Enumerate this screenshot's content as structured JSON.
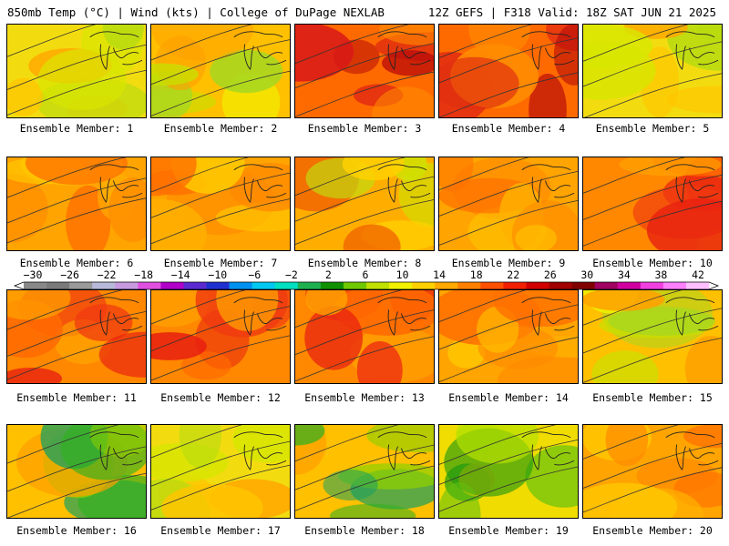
{
  "header": {
    "left": "850mb Temp (°C) | Wind (kts) | College of DuPage NEXLAB",
    "right": "12Z GEFS | F318 Valid: 18Z SAT JUN 21 2025"
  },
  "caption_prefix": "Ensemble Member: ",
  "members": [
    {
      "id": "1",
      "mood": "y"
    },
    {
      "id": "2",
      "mood": "yg"
    },
    {
      "id": "3",
      "mood": "rr"
    },
    {
      "id": "4",
      "mood": "rr"
    },
    {
      "id": "5",
      "mood": "y"
    },
    {
      "id": "6",
      "mood": "o"
    },
    {
      "id": "7",
      "mood": "o"
    },
    {
      "id": "8",
      "mood": "og"
    },
    {
      "id": "9",
      "mood": "o"
    },
    {
      "id": "10",
      "mood": "r"
    },
    {
      "id": "11",
      "mood": "r"
    },
    {
      "id": "12",
      "mood": "r"
    },
    {
      "id": "13",
      "mood": "r"
    },
    {
      "id": "14",
      "mood": "o"
    },
    {
      "id": "15",
      "mood": "yg"
    },
    {
      "id": "16",
      "mood": "gt"
    },
    {
      "id": "17",
      "mood": "y"
    },
    {
      "id": "18",
      "mood": "gt"
    },
    {
      "id": "19",
      "mood": "g"
    },
    {
      "id": "20",
      "mood": "o"
    }
  ],
  "colorbar": {
    "labels": [
      "−30",
      "−26",
      "−22",
      "−18",
      "−14",
      "−10",
      "−6",
      "−2",
      "2",
      "6",
      "10",
      "14",
      "18",
      "22",
      "26",
      "30",
      "34",
      "38",
      "42"
    ],
    "colors": [
      "#888888",
      "#7a7a7a",
      "#9a9a9a",
      "#b8b8d8",
      "#c89ae0",
      "#e050e0",
      "#b000c8",
      "#5a2ad0",
      "#2030d0",
      "#0090f0",
      "#00c8f0",
      "#00e0c0",
      "#20b050",
      "#109000",
      "#70c800",
      "#c0e000",
      "#f0f000",
      "#ffd000",
      "#ffa800",
      "#ff8000",
      "#ff5000",
      "#f02000",
      "#d00000",
      "#a00000",
      "#800000",
      "#a00060",
      "#d000a0",
      "#f040e0",
      "#ff80ff",
      "#ffc0ff"
    ]
  }
}
